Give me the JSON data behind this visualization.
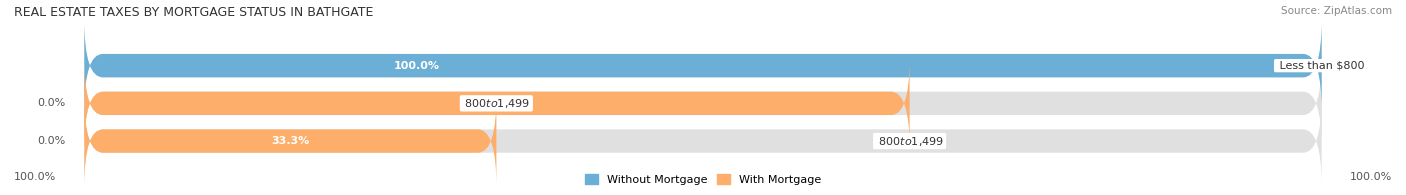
{
  "title": "REAL ESTATE TAXES BY MORTGAGE STATUS IN BATHGATE",
  "source": "Source: ZipAtlas.com",
  "rows": [
    {
      "label": "Less than $800",
      "without_mortgage": 100.0,
      "with_mortgage": 0.0
    },
    {
      "label": "$800 to $1,499",
      "without_mortgage": 0.0,
      "with_mortgage": 66.7
    },
    {
      "label": "$800 to $1,499",
      "without_mortgage": 0.0,
      "with_mortgage": 33.3
    }
  ],
  "color_without": "#6baed6",
  "color_with": "#fdae6b",
  "color_bg_bar": "#e0e0e0",
  "color_bg_figure": "#ffffff",
  "bar_height": 0.62,
  "left_label_pct": "100.0%",
  "right_label_pct": "100.0%",
  "legend_labels": [
    "Without Mortgage",
    "With Mortgage"
  ],
  "title_fontsize": 9,
  "source_fontsize": 7.5,
  "bar_label_fontsize": 8,
  "axis_label_fontsize": 8
}
